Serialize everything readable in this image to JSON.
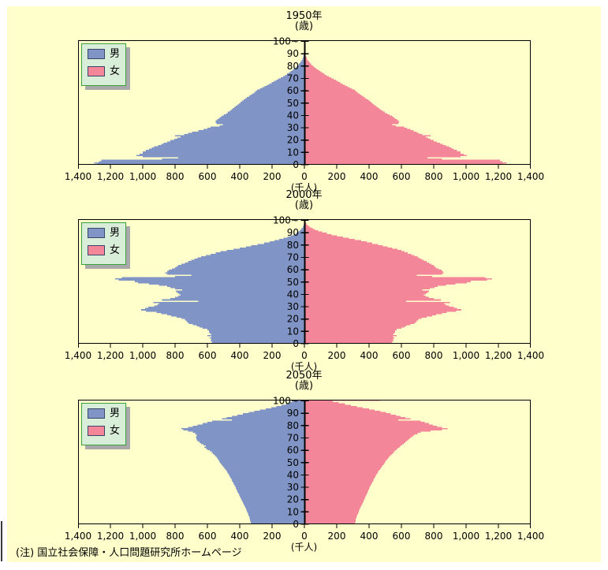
{
  "note": "(注) 国立社会保障・人口問題研究所ホームページ",
  "legend": {
    "male_label": "男",
    "female_label": "女"
  },
  "colors": {
    "male": "#8095c5",
    "female": "#f4869a",
    "panel_bg": "#ffffcc",
    "axis": "#000000",
    "legend_bg": "#d9eed9",
    "legend_border": "#3aa03a",
    "swatch_border": "#3a4668",
    "shadow": "#a9a9a9"
  },
  "chart_data": {
    "type": "bar",
    "subtype": "population-pyramid-back-to-back",
    "values_unit": "thousand persons (千人) per single year of age, estimated from chart",
    "age_unit_label": "(歳)",
    "count_unit_label": "(千人)",
    "x_axis": {
      "min": -1400,
      "max": 1400,
      "tick_step": 200,
      "tick_labels": [
        "1,400",
        "1,200",
        "1,000",
        "800",
        "600",
        "400",
        "200",
        "0",
        "200",
        "400",
        "600",
        "800",
        "1,000",
        "1,200",
        "1,400"
      ]
    },
    "y_axis": {
      "min_age": 0,
      "age_bin_years": 1,
      "top_bin_label": "100~",
      "tick_labels": [
        "0",
        "10",
        "20",
        "30",
        "40",
        "50",
        "60",
        "70",
        "80",
        "90",
        "100~"
      ]
    },
    "pyramids": [
      {
        "title": "1950年",
        "male": [
          1280,
          1300,
          1270,
          1255,
          880,
          780,
          1000,
          1040,
          1020,
          1000,
          1000,
          980,
          960,
          945,
          930,
          905,
          885,
          870,
          850,
          830,
          805,
          785,
          765,
          800,
          745,
          720,
          695,
          655,
          625,
          600,
          580,
          525,
          505,
          545,
          550,
          550,
          540,
          530,
          520,
          510,
          498,
          484,
          472,
          462,
          452,
          444,
          434,
          424,
          414,
          404,
          396,
          385,
          375,
          365,
          355,
          345,
          333,
          322,
          311,
          301,
          292,
          276,
          261,
          246,
          231,
          217,
          202,
          188,
          174,
          160,
          146,
          132,
          119,
          107,
          96,
          85,
          75,
          65,
          56,
          48,
          40,
          33,
          27,
          21,
          17,
          13,
          10,
          7,
          5,
          4,
          3,
          2,
          2,
          1,
          1,
          1,
          0,
          0,
          0,
          0,
          0
        ],
        "female": [
          1230,
          1250,
          1225,
          1210,
          850,
          760,
          965,
          1005,
          985,
          965,
          965,
          945,
          925,
          910,
          895,
          875,
          855,
          840,
          820,
          800,
          780,
          765,
          750,
          780,
          730,
          710,
          695,
          675,
          655,
          635,
          618,
          565,
          545,
          580,
          585,
          582,
          572,
          562,
          552,
          542,
          528,
          512,
          498,
          486,
          474,
          464,
          454,
          444,
          434,
          424,
          415,
          404,
          394,
          384,
          374,
          364,
          352,
          341,
          330,
          320,
          312,
          296,
          281,
          266,
          251,
          237,
          222,
          208,
          194,
          180,
          166,
          151,
          137,
          124,
          112,
          100,
          89,
          78,
          68,
          59,
          50,
          42,
          35,
          29,
          23,
          18,
          14,
          11,
          8,
          6,
          5,
          4,
          3,
          2,
          2,
          1,
          1,
          1,
          0,
          0,
          0
        ]
      },
      {
        "title": "2000年",
        "male": [
          575,
          570,
          580,
          575,
          585,
          575,
          600,
          575,
          585,
          590,
          590,
          600,
          630,
          650,
          665,
          690,
          715,
          725,
          730,
          740,
          760,
          790,
          825,
          850,
          885,
          915,
          980,
          1010,
          985,
          965,
          930,
          910,
          900,
          935,
          655,
          880,
          830,
          800,
          780,
          765,
          775,
          785,
          795,
          755,
          800,
          830,
          850,
          900,
          960,
          1030,
          1050,
          1150,
          1170,
          1130,
          800,
          700,
          850,
          860,
          850,
          840,
          820,
          800,
          790,
          780,
          760,
          740,
          720,
          700,
          680,
          660,
          640,
          610,
          580,
          550,
          520,
          480,
          440,
          400,
          360,
          330,
          290,
          250,
          215,
          185,
          155,
          130,
          105,
          85,
          67,
          52,
          40,
          30,
          22,
          16,
          11,
          8,
          5,
          3,
          2,
          1,
          1
        ],
        "female": [
          545,
          542,
          550,
          548,
          556,
          548,
          570,
          548,
          556,
          560,
          562,
          570,
          600,
          620,
          632,
          655,
          680,
          690,
          695,
          705,
          725,
          755,
          790,
          815,
          850,
          880,
          940,
          970,
          945,
          925,
          895,
          875,
          865,
          900,
          630,
          845,
          800,
          770,
          752,
          740,
          750,
          760,
          770,
          730,
          775,
          805,
          825,
          875,
          935,
          1005,
          1030,
          1130,
          1160,
          1120,
          790,
          695,
          850,
          862,
          855,
          848,
          832,
          815,
          808,
          800,
          785,
          770,
          755,
          740,
          725,
          710,
          700,
          680,
          660,
          640,
          620,
          600,
          575,
          545,
          515,
          485,
          455,
          420,
          385,
          350,
          312,
          275,
          238,
          202,
          168,
          138,
          110,
          86,
          66,
          50,
          36,
          26,
          18,
          12,
          8,
          5,
          3
        ]
      },
      {
        "title": "2050年",
        "male": [
          330,
          332,
          334,
          336,
          338,
          340,
          343,
          346,
          349,
          352,
          355,
          358,
          362,
          365,
          369,
          372,
          376,
          380,
          384,
          388,
          392,
          396,
          399,
          403,
          406,
          410,
          414,
          417,
          421,
          424,
          428,
          432,
          436,
          440,
          444,
          448,
          452,
          456,
          460,
          464,
          468,
          473,
          479,
          484,
          490,
          495,
          501,
          507,
          513,
          519,
          525,
          530,
          535,
          540,
          545,
          551,
          558,
          565,
          572,
          585,
          600,
          610,
          620,
          610,
          625,
          640,
          650,
          660,
          665,
          668,
          670,
          668,
          665,
          675,
          690,
          720,
          750,
          760,
          720,
          690,
          660,
          630,
          600,
          570,
          450,
          510,
          480,
          450,
          415,
          380,
          345,
          310,
          275,
          240,
          205,
          172,
          142,
          115,
          90,
          70,
          130
        ],
        "female": [
          312,
          314,
          316,
          318,
          320,
          322,
          325,
          328,
          331,
          334,
          336,
          340,
          343,
          347,
          350,
          354,
          358,
          361,
          365,
          368,
          372,
          375,
          379,
          382,
          386,
          389,
          392,
          396,
          399,
          402,
          406,
          410,
          414,
          418,
          422,
          426,
          430,
          434,
          438,
          442,
          446,
          451,
          457,
          462,
          468,
          473,
          479,
          484,
          490,
          495,
          500,
          506,
          512,
          518,
          524,
          530,
          538,
          546,
          554,
          562,
          570,
          578,
          587,
          595,
          605,
          615,
          625,
          635,
          645,
          652,
          660,
          670,
          680,
          700,
          720,
          780,
          850,
          885,
          850,
          820,
          795,
          770,
          745,
          720,
          580,
          655,
          625,
          595,
          565,
          535,
          505,
          470,
          435,
          400,
          362,
          325,
          288,
          250,
          212,
          175,
          470
        ]
      }
    ]
  }
}
